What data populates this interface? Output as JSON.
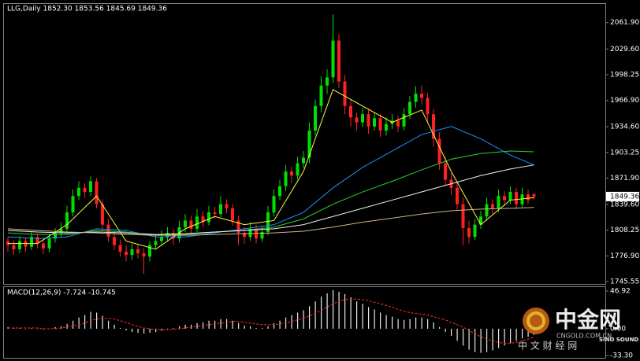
{
  "chart_data": [
    {
      "type": "candlestick",
      "title": "LLG,Daily  1852.30 1853.56 1845.69 1849.36",
      "up_color": "#00e000",
      "down_color": "#ff2020",
      "ylim": [
        1742.6,
        2084.7
      ],
      "yticks": [
        {
          "value": 2061.9,
          "label": "2061.90"
        },
        {
          "value": 2029.6,
          "label": "2029.60"
        },
        1998.25,
        {
          "value": 1966.9,
          "label": "1966.90"
        },
        {
          "value": 1934.6,
          "label": "1934.60"
        },
        1903.25,
        {
          "value": 1871.9,
          "label": "1871.90"
        },
        {
          "value": 1839.6,
          "label": "1839.60"
        },
        1808.25,
        {
          "value": 1776.9,
          "label": "1776.90"
        },
        1745.55
      ],
      "last_price": 1849.36,
      "ohlc": [
        [
          1795,
          1800,
          1782,
          1790
        ],
        [
          1790,
          1796,
          1778,
          1785
        ],
        [
          1785,
          1801,
          1780,
          1795
        ],
        [
          1795,
          1799,
          1782,
          1788
        ],
        [
          1788,
          1806,
          1784,
          1800
        ],
        [
          1800,
          1804,
          1786,
          1792
        ],
        [
          1792,
          1796,
          1779,
          1786
        ],
        [
          1786,
          1803,
          1781,
          1798
        ],
        [
          1798,
          1811,
          1793,
          1805
        ],
        [
          1805,
          1818,
          1800,
          1810
        ],
        [
          1810,
          1838,
          1806,
          1830
        ],
        [
          1830,
          1858,
          1825,
          1850
        ],
        [
          1850,
          1868,
          1845,
          1860
        ],
        [
          1860,
          1866,
          1848,
          1855
        ],
        [
          1855,
          1874,
          1850,
          1868
        ],
        [
          1868,
          1872,
          1835,
          1840
        ],
        [
          1840,
          1846,
          1808,
          1815
        ],
        [
          1815,
          1822,
          1794,
          1800
        ],
        [
          1800,
          1806,
          1784,
          1790
        ],
        [
          1790,
          1797,
          1776,
          1782
        ],
        [
          1782,
          1790,
          1770,
          1778
        ],
        [
          1778,
          1792,
          1772,
          1785
        ],
        [
          1785,
          1791,
          1774,
          1780
        ],
        [
          1780,
          1786,
          1755,
          1776
        ],
        [
          1776,
          1795,
          1770,
          1790
        ],
        [
          1790,
          1802,
          1785,
          1795
        ],
        [
          1795,
          1808,
          1789,
          1800
        ],
        [
          1800,
          1812,
          1795,
          1805
        ],
        [
          1805,
          1810,
          1790,
          1798
        ],
        [
          1798,
          1820,
          1793,
          1812
        ],
        [
          1812,
          1828,
          1806,
          1820
        ],
        [
          1820,
          1826,
          1803,
          1810
        ],
        [
          1810,
          1834,
          1806,
          1825
        ],
        [
          1825,
          1832,
          1812,
          1818
        ],
        [
          1818,
          1838,
          1814,
          1830
        ],
        [
          1830,
          1837,
          1822,
          1828
        ],
        [
          1828,
          1850,
          1824,
          1840
        ],
        [
          1840,
          1846,
          1829,
          1835
        ],
        [
          1835,
          1840,
          1814,
          1820
        ],
        [
          1820,
          1826,
          1790,
          1805
        ],
        [
          1805,
          1812,
          1792,
          1800
        ],
        [
          1800,
          1818,
          1795,
          1810
        ],
        [
          1810,
          1815,
          1792,
          1798
        ],
        [
          1798,
          1813,
          1794,
          1806
        ],
        [
          1806,
          1838,
          1802,
          1830
        ],
        [
          1830,
          1858,
          1825,
          1850
        ],
        [
          1850,
          1870,
          1845,
          1862
        ],
        [
          1862,
          1888,
          1856,
          1880
        ],
        [
          1880,
          1886,
          1866,
          1875
        ],
        [
          1875,
          1898,
          1870,
          1890
        ],
        [
          1890,
          1905,
          1884,
          1897
        ],
        [
          1897,
          1940,
          1890,
          1930
        ],
        [
          1930,
          1968,
          1924,
          1960
        ],
        [
          1960,
          1996,
          1952,
          1985
        ],
        [
          1985,
          2005,
          1975,
          1995
        ],
        [
          1995,
          2072,
          1988,
          2040
        ],
        [
          2040,
          2048,
          1982,
          1990
        ],
        [
          1990,
          1998,
          1950,
          1960
        ],
        [
          1960,
          1968,
          1935,
          1946
        ],
        [
          1946,
          1952,
          1930,
          1940
        ],
        [
          1940,
          1958,
          1934,
          1950
        ],
        [
          1950,
          1956,
          1926,
          1935
        ],
        [
          1935,
          1952,
          1930,
          1945
        ],
        [
          1945,
          1950,
          1922,
          1930
        ],
        [
          1930,
          1946,
          1924,
          1938
        ],
        [
          1938,
          1950,
          1932,
          1942
        ],
        [
          1942,
          1948,
          1928,
          1935
        ],
        [
          1935,
          1958,
          1930,
          1950
        ],
        [
          1950,
          1972,
          1944,
          1965
        ],
        [
          1965,
          1984,
          1958,
          1975
        ],
        [
          1975,
          1985,
          1962,
          1970
        ],
        [
          1970,
          1976,
          1940,
          1950
        ],
        [
          1950,
          1956,
          1910,
          1920
        ],
        [
          1920,
          1928,
          1882,
          1890
        ],
        [
          1890,
          1898,
          1862,
          1870
        ],
        [
          1870,
          1878,
          1852,
          1860
        ],
        [
          1860,
          1866,
          1832,
          1840
        ],
        [
          1840,
          1848,
          1790,
          1811
        ],
        [
          1811,
          1820,
          1792,
          1800
        ],
        [
          1800,
          1822,
          1796,
          1815
        ],
        [
          1815,
          1832,
          1810,
          1825
        ],
        [
          1825,
          1848,
          1820,
          1840
        ],
        [
          1840,
          1846,
          1828,
          1835
        ],
        [
          1835,
          1858,
          1830,
          1850
        ],
        [
          1850,
          1856,
          1838,
          1845
        ],
        [
          1845,
          1862,
          1840,
          1855
        ],
        [
          1855,
          1860,
          1834,
          1840
        ],
        [
          1840,
          1860,
          1836,
          1852
        ],
        [
          1852,
          1858,
          1840,
          1845
        ],
        [
          1852.3,
          1853.56,
          1845.69,
          1849.36
        ]
      ],
      "series_x": [
        0,
        5,
        10,
        15,
        20,
        25,
        30,
        35,
        40,
        45,
        50,
        55,
        60,
        65,
        70,
        75,
        80,
        85,
        89
      ],
      "series": [
        {
          "color": "#ffff40",
          "values": [
            1792,
            1792,
            1815,
            1850,
            1795,
            1785,
            1810,
            1825,
            1815,
            1820,
            1880,
            1980,
            1960,
            1940,
            1955,
            1880,
            1815,
            1845,
            1848
          ]
        },
        {
          "color": "#1e90ff",
          "values": [
            1800,
            1798,
            1800,
            1810,
            1808,
            1800,
            1800,
            1805,
            1810,
            1815,
            1830,
            1860,
            1885,
            1905,
            1925,
            1935,
            1920,
            1900,
            1888
          ]
        },
        {
          "color": "#32cd32",
          "values": [
            1805,
            1803,
            1803,
            1808,
            1806,
            1802,
            1803,
            1806,
            1808,
            1812,
            1822,
            1840,
            1855,
            1868,
            1882,
            1895,
            1902,
            1905,
            1904
          ]
        },
        {
          "color": "#f0f0f0",
          "values": [
            1808,
            1806,
            1805,
            1806,
            1805,
            1803,
            1804,
            1806,
            1808,
            1810,
            1815,
            1825,
            1835,
            1845,
            1855,
            1865,
            1875,
            1883,
            1888
          ]
        },
        {
          "color": "#d2b48c",
          "values": [
            1810,
            1808,
            1806,
            1805,
            1803,
            1802,
            1802,
            1803,
            1804,
            1805,
            1807,
            1812,
            1818,
            1823,
            1828,
            1832,
            1834,
            1835,
            1836
          ]
        }
      ]
    },
    {
      "type": "macd",
      "title": "MACD(12,26,9) -7.724 -10.745",
      "bar_color": "#e8e8e8",
      "ylim": [
        -36.2,
        51.8
      ],
      "yticks": [
        46.92,
        {
          "value": 0,
          "label": "0.00"
        },
        {
          "value": -33.3,
          "label": "-33.30"
        }
      ],
      "values": [
        2,
        1,
        1,
        0,
        1,
        0,
        -1,
        0,
        2,
        3,
        6,
        10,
        14,
        17,
        21,
        20,
        16,
        10,
        5,
        1,
        -2,
        -4,
        -5,
        -6,
        -5,
        -4,
        -2,
        0,
        1,
        3,
        5,
        5,
        7,
        8,
        10,
        10,
        12,
        12,
        10,
        7,
        4,
        3,
        1,
        1,
        3,
        7,
        10,
        14,
        17,
        20,
        23,
        28,
        34,
        40,
        44,
        48,
        46,
        43,
        39,
        34,
        31,
        27,
        24,
        20,
        17,
        15,
        12,
        11,
        12,
        14,
        14,
        12,
        8,
        2,
        -4,
        -9,
        -15,
        -21,
        -26,
        -29,
        -30,
        -29,
        -27,
        -24,
        -21,
        -18,
        -15,
        -12,
        -10,
        -7.724
      ],
      "signal": {
        "color": "#ff3030",
        "values": [
          1,
          1,
          1,
          1,
          1,
          1,
          0,
          0,
          0,
          1,
          2,
          3,
          5,
          7,
          10,
          12,
          13,
          13,
          12,
          10,
          8,
          5,
          3,
          1,
          0,
          -1,
          -2,
          -1,
          -1,
          0,
          1,
          2,
          3,
          4,
          5,
          6,
          7,
          8,
          9,
          9,
          8,
          7,
          6,
          5,
          5,
          5,
          6,
          7,
          9,
          11,
          13,
          16,
          19,
          23,
          27,
          31,
          34,
          36,
          37,
          37,
          36,
          35,
          33,
          31,
          29,
          27,
          24,
          22,
          20,
          19,
          18,
          17,
          15,
          13,
          11,
          8,
          5,
          2,
          -2,
          -6,
          -10,
          -13,
          -15,
          -17,
          -18,
          -18,
          -17,
          -15,
          -13,
          -10.745
        ]
      }
    }
  ],
  "watermark": {
    "brand": "中金网",
    "site": "CNGOLD.COM.CN",
    "slogan": "中 文 财 经 网",
    "partner": "SINO SOUND"
  }
}
